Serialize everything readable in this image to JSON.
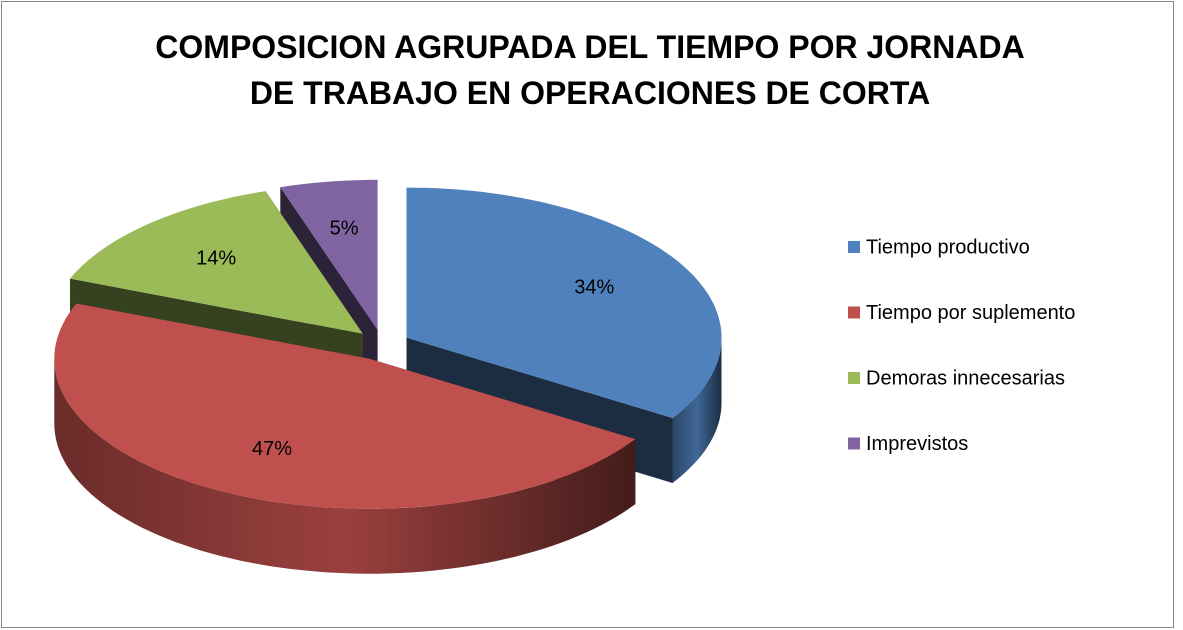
{
  "chart_data": {
    "type": "pie",
    "title": "COMPOSICION AGRUPADA  DEL TIEMPO POR JORNADA DE TRABAJO EN OPERACIONES DE CORTA",
    "categories": [
      "Tiempo productivo",
      "Tiempo por suplemento",
      "Demoras innecesarias",
      "Imprevistos"
    ],
    "values": [
      34,
      47,
      14,
      5
    ],
    "value_labels": [
      "34%",
      "47%",
      "14%",
      "5%"
    ],
    "colors": [
      "#4f81bd",
      "#c0504d",
      "#9bbb59",
      "#8064a2"
    ],
    "legend": "right"
  }
}
